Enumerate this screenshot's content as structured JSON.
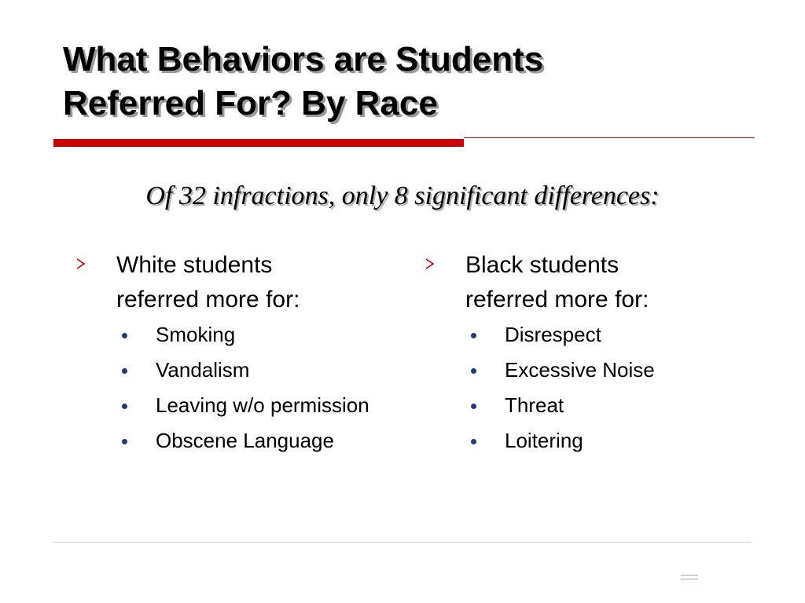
{
  "title": {
    "line1": "What Behaviors are Students",
    "line2": "Referred For? By Race"
  },
  "subtitle": "Of 32 infractions, only 8 significant differences:",
  "accent_color": "#cc0000",
  "bullet_color": "#1f3a7a",
  "icons": {
    "heading_bullet": "arrow-right-icon",
    "sub_bullet": "dot-icon"
  },
  "left_column": {
    "heading_line1": "White students",
    "heading_line2": "referred more for:",
    "items": [
      {
        "text": "Smoking"
      },
      {
        "text": "Vandalism"
      },
      {
        "text": "Leaving w/o permission"
      },
      {
        "text": "Obscene Language"
      }
    ]
  },
  "right_column": {
    "heading_line1": "Black students",
    "heading_line2": "referred more for:",
    "items": [
      {
        "text": "Disrespect"
      },
      {
        "text": "Excessive Noise"
      },
      {
        "text": "Threat"
      },
      {
        "text": "Loitering"
      }
    ]
  }
}
